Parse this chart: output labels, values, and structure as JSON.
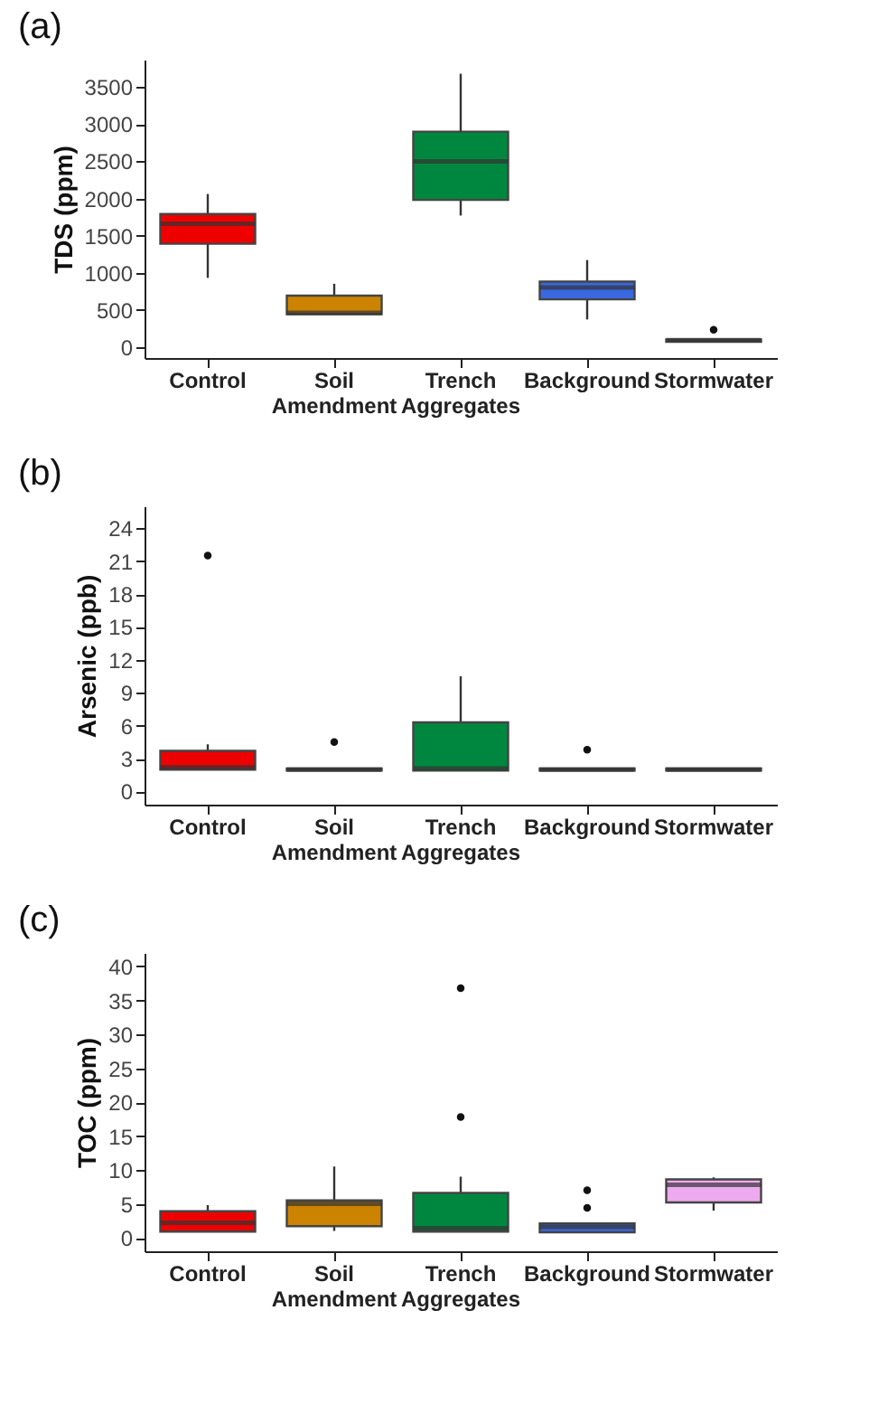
{
  "chart_data": [
    {
      "type": "box",
      "title": "(a)",
      "ylabel": "TDS (ppm)",
      "categories": [
        "Control",
        "Soil Amendment",
        "Trench Aggregates",
        "Background",
        "Stormwater"
      ],
      "colors": [
        "#ee0000",
        "#cc8400",
        "#00873f",
        "#3a68e0",
        "#eeaaee"
      ],
      "ylim": [
        -150,
        3870
      ],
      "yticks": [
        0,
        500,
        1000,
        1500,
        2000,
        2500,
        3000,
        3500
      ],
      "grid": false,
      "legend": false,
      "boxes": [
        {
          "low": 930,
          "q1": 1390,
          "median": 1660,
          "q3": 1790,
          "high": 2060
        },
        {
          "low": 440,
          "q1": 440,
          "median": 460,
          "q3": 690,
          "high": 850
        },
        {
          "low": 1770,
          "q1": 1980,
          "median": 2500,
          "q3": 2900,
          "high": 3680
        },
        {
          "low": 370,
          "q1": 640,
          "median": 800,
          "q3": 880,
          "high": 1170
        },
        {
          "low": 70,
          "q1": 70,
          "median": 90,
          "q3": 100,
          "high": 100,
          "outliers": [
            230
          ]
        }
      ]
    },
    {
      "type": "box",
      "title": "(b)",
      "ylabel": "Arsenic (ppb)",
      "categories": [
        "Control",
        "Soil Amendment",
        "Trench Aggregates",
        "Background",
        "Stormwater"
      ],
      "colors": [
        "#ee0000",
        "#cc8400",
        "#00873f",
        "#3a68e0",
        "#eeaaee"
      ],
      "ylim": [
        -1.2,
        26
      ],
      "yticks": [
        0,
        3,
        6,
        9,
        12,
        15,
        18,
        21,
        24
      ],
      "grid": false,
      "legend": false,
      "boxes": [
        {
          "low": 2.0,
          "q1": 2.0,
          "median": 2.2,
          "q3": 3.7,
          "high": 4.3,
          "outliers": [
            21.5
          ]
        },
        {
          "low": 1.9,
          "q1": 1.9,
          "median": 2.0,
          "q3": 2.1,
          "high": 2.1,
          "outliers": [
            4.5
          ]
        },
        {
          "low": 1.9,
          "q1": 1.9,
          "median": 2.1,
          "q3": 6.3,
          "high": 10.5
        },
        {
          "low": 1.9,
          "q1": 1.9,
          "median": 2.0,
          "q3": 2.1,
          "high": 2.1,
          "outliers": [
            3.8
          ]
        },
        {
          "low": 1.9,
          "q1": 1.9,
          "median": 2.0,
          "q3": 2.1,
          "high": 2.1
        }
      ]
    },
    {
      "type": "box",
      "title": "(c)",
      "ylabel": "TOC (ppm)",
      "categories": [
        "Control",
        "Soil Amendment",
        "Trench Aggregates",
        "Background",
        "Stormwater"
      ],
      "colors": [
        "#ee0000",
        "#cc8400",
        "#00873f",
        "#3a68e0",
        "#eeaaee"
      ],
      "ylim": [
        -2,
        42
      ],
      "yticks": [
        0,
        5,
        10,
        15,
        20,
        25,
        30,
        35,
        40
      ],
      "grid": false,
      "legend": false,
      "boxes": [
        {
          "low": 0.9,
          "q1": 0.9,
          "median": 2.2,
          "q3": 3.9,
          "high": 4.8
        },
        {
          "low": 1.0,
          "q1": 1.7,
          "median": 5.0,
          "q3": 5.5,
          "high": 10.5
        },
        {
          "low": 0.9,
          "q1": 0.9,
          "median": 1.4,
          "q3": 6.6,
          "high": 9.0,
          "outliers": [
            17.8,
            36.8
          ]
        },
        {
          "low": 0.8,
          "q1": 0.8,
          "median": 1.6,
          "q3": 2.1,
          "high": 2.1,
          "outliers": [
            4.4,
            7.0
          ]
        },
        {
          "low": 4.0,
          "q1": 5.2,
          "median": 7.8,
          "q3": 8.6,
          "high": 8.9
        }
      ]
    }
  ]
}
